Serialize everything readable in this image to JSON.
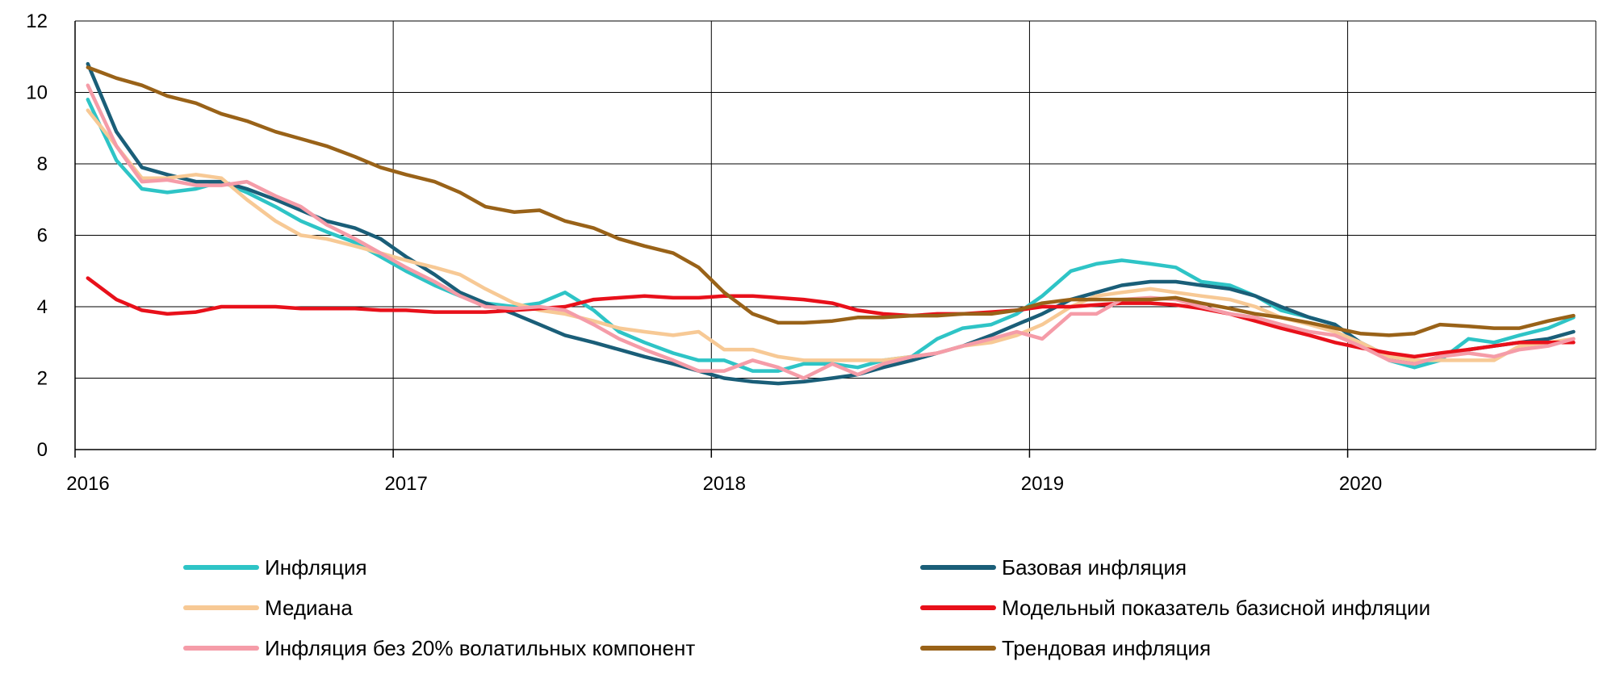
{
  "chart_data": {
    "type": "line",
    "title": "",
    "xlabel": "",
    "ylabel": "",
    "xlim": [
      2016,
      2020.78
    ],
    "ylim": [
      0,
      12
    ],
    "x_ticks": [
      "2016",
      "2017",
      "2018",
      "2019",
      "2020"
    ],
    "y_ticks": [
      "0",
      "2",
      "4",
      "6",
      "8",
      "10",
      "12"
    ],
    "grid": true,
    "legend_position": "bottom",
    "x": [
      2016.04,
      2016.13,
      2016.21,
      2016.29,
      2016.38,
      2016.46,
      2016.54,
      2016.63,
      2016.71,
      2016.79,
      2016.88,
      2016.96,
      2017.04,
      2017.13,
      2017.21,
      2017.29,
      2017.38,
      2017.46,
      2017.54,
      2017.63,
      2017.71,
      2017.79,
      2017.88,
      2017.96,
      2018.04,
      2018.13,
      2018.21,
      2018.29,
      2018.38,
      2018.46,
      2018.54,
      2018.63,
      2018.71,
      2018.79,
      2018.88,
      2018.96,
      2019.04,
      2019.13,
      2019.21,
      2019.29,
      2019.38,
      2019.46,
      2019.54,
      2019.63,
      2019.71,
      2019.79,
      2019.88,
      2019.96,
      2020.04,
      2020.13,
      2020.21,
      2020.29,
      2020.38,
      2020.46,
      2020.54,
      2020.63,
      2020.71
    ],
    "series": [
      {
        "name": "Инфляция",
        "color": "#2ec4c6",
        "values": [
          9.8,
          8.1,
          7.3,
          7.2,
          7.3,
          7.5,
          7.2,
          6.8,
          6.4,
          6.1,
          5.8,
          5.4,
          5.0,
          4.6,
          4.3,
          4.1,
          4.0,
          4.1,
          4.4,
          3.9,
          3.3,
          3.0,
          2.7,
          2.5,
          2.5,
          2.2,
          2.2,
          2.4,
          2.4,
          2.3,
          2.5,
          2.6,
          3.1,
          3.4,
          3.5,
          3.8,
          4.3,
          5.0,
          5.2,
          5.3,
          5.2,
          5.1,
          4.7,
          4.6,
          4.3,
          3.9,
          3.7,
          3.5,
          3.0,
          2.5,
          2.3,
          2.5,
          3.1,
          3.0,
          3.2,
          3.4,
          3.7
        ]
      },
      {
        "name": "Базовая инфляция",
        "color": "#1a5e78",
        "values": [
          10.8,
          8.9,
          7.9,
          7.7,
          7.5,
          7.5,
          7.3,
          7.0,
          6.7,
          6.4,
          6.2,
          5.9,
          5.4,
          4.9,
          4.4,
          4.1,
          3.8,
          3.5,
          3.2,
          3.0,
          2.8,
          2.6,
          2.4,
          2.2,
          2.0,
          1.9,
          1.85,
          1.9,
          2.0,
          2.1,
          2.3,
          2.5,
          2.7,
          2.9,
          3.2,
          3.5,
          3.8,
          4.2,
          4.4,
          4.6,
          4.7,
          4.7,
          4.6,
          4.5,
          4.3,
          4.0,
          3.7,
          3.5,
          3.0,
          2.6,
          2.4,
          2.6,
          2.8,
          2.9,
          3.0,
          3.1,
          3.3
        ]
      },
      {
        "name": "Медиана",
        "color": "#f7c995",
        "values": [
          9.5,
          8.5,
          7.6,
          7.6,
          7.7,
          7.6,
          7.0,
          6.4,
          6.0,
          5.9,
          5.7,
          5.5,
          5.3,
          5.1,
          4.9,
          4.5,
          4.1,
          3.9,
          3.8,
          3.6,
          3.4,
          3.3,
          3.2,
          3.3,
          2.8,
          2.8,
          2.6,
          2.5,
          2.5,
          2.5,
          2.5,
          2.6,
          2.7,
          2.9,
          3.0,
          3.2,
          3.5,
          4.0,
          4.3,
          4.4,
          4.5,
          4.4,
          4.3,
          4.2,
          4.0,
          3.7,
          3.5,
          3.3,
          3.0,
          2.6,
          2.5,
          2.5,
          2.5,
          2.5,
          2.9,
          3.0,
          3.1
        ]
      },
      {
        "name": "Модельный показатель базисной инфляции",
        "color": "#e8101a",
        "values": [
          4.8,
          4.2,
          3.9,
          3.8,
          3.85,
          4.0,
          4.0,
          4.0,
          3.95,
          3.95,
          3.95,
          3.9,
          3.9,
          3.85,
          3.85,
          3.85,
          3.9,
          3.95,
          4.0,
          4.2,
          4.25,
          4.3,
          4.25,
          4.25,
          4.3,
          4.3,
          4.25,
          4.2,
          4.1,
          3.9,
          3.8,
          3.75,
          3.8,
          3.8,
          3.85,
          3.9,
          4.0,
          4.0,
          4.05,
          4.1,
          4.1,
          4.05,
          3.95,
          3.8,
          3.6,
          3.4,
          3.2,
          3.0,
          2.85,
          2.7,
          2.6,
          2.7,
          2.8,
          2.9,
          3.0,
          3.0,
          3.0
        ]
      },
      {
        "name": "Инфляция без 20% волатильных компонент",
        "color": "#f59ca8",
        "values": [
          10.2,
          8.5,
          7.5,
          7.55,
          7.4,
          7.4,
          7.5,
          7.1,
          6.8,
          6.3,
          5.9,
          5.5,
          5.1,
          4.7,
          4.3,
          4.0,
          3.95,
          4.0,
          3.9,
          3.5,
          3.1,
          2.8,
          2.5,
          2.2,
          2.2,
          2.5,
          2.3,
          2.0,
          2.4,
          2.1,
          2.4,
          2.6,
          2.7,
          2.9,
          3.1,
          3.3,
          3.1,
          3.8,
          3.8,
          4.2,
          4.25,
          4.2,
          4.0,
          3.8,
          3.7,
          3.5,
          3.3,
          3.2,
          2.9,
          2.5,
          2.4,
          2.6,
          2.7,
          2.6,
          2.8,
          2.9,
          3.1
        ]
      },
      {
        "name": "Трендовая инфляция",
        "color": "#996218",
        "values": [
          10.7,
          10.4,
          10.2,
          9.9,
          9.7,
          9.4,
          9.2,
          8.9,
          8.7,
          8.5,
          8.2,
          7.9,
          7.7,
          7.5,
          7.2,
          6.8,
          6.65,
          6.7,
          6.4,
          6.2,
          5.9,
          5.7,
          5.5,
          5.1,
          4.4,
          3.8,
          3.55,
          3.55,
          3.6,
          3.7,
          3.7,
          3.75,
          3.75,
          3.8,
          3.8,
          3.9,
          4.1,
          4.2,
          4.2,
          4.2,
          4.2,
          4.25,
          4.1,
          3.95,
          3.8,
          3.7,
          3.55,
          3.4,
          3.25,
          3.2,
          3.25,
          3.5,
          3.45,
          3.4,
          3.4,
          3.6,
          3.75
        ]
      }
    ]
  }
}
